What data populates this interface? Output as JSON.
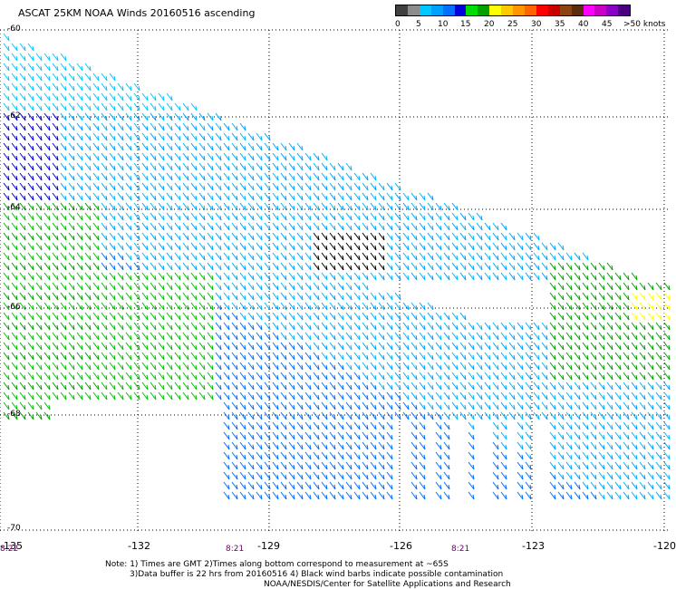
{
  "title": "ASCAT 25KM NOAA Winds 20160516 ascending",
  "legend": {
    "colors": [
      "#404040",
      "#8c8c8c",
      "#00c8ff",
      "#00a0ff",
      "#0070ff",
      "#0000dc",
      "#00dc00",
      "#00a000",
      "#ffff00",
      "#ffc800",
      "#ff9600",
      "#ff6400",
      "#ff0000",
      "#c80000",
      "#8b4513",
      "#5a2d0c",
      "#ff00ff",
      "#c800c8",
      "#8a00c8",
      "#4b0082"
    ],
    "labels": [
      "0",
      "5",
      "10",
      "15",
      "20",
      "25",
      "30",
      "35",
      "40",
      "45",
      ">50 knots"
    ]
  },
  "map": {
    "latitudes": [
      "-60",
      "-62",
      "-64",
      "-66",
      "-68",
      "-70"
    ],
    "longitudes": [
      "-135",
      "-132",
      "-129",
      "-126",
      "-123",
      "-120"
    ],
    "times": [
      "8:22",
      "8:21",
      "8:21"
    ]
  },
  "notes": {
    "line1": "Note: 1) Times are GMT 2)Times along bottom correspond to measurement at ~65S",
    "line2": "3)Data buffer is 22 hrs from 20160516 4) Black wind barbs indicate possible contamination",
    "line3": "NOAA/NESDIS/Center for Satellite Applications and Research"
  }
}
